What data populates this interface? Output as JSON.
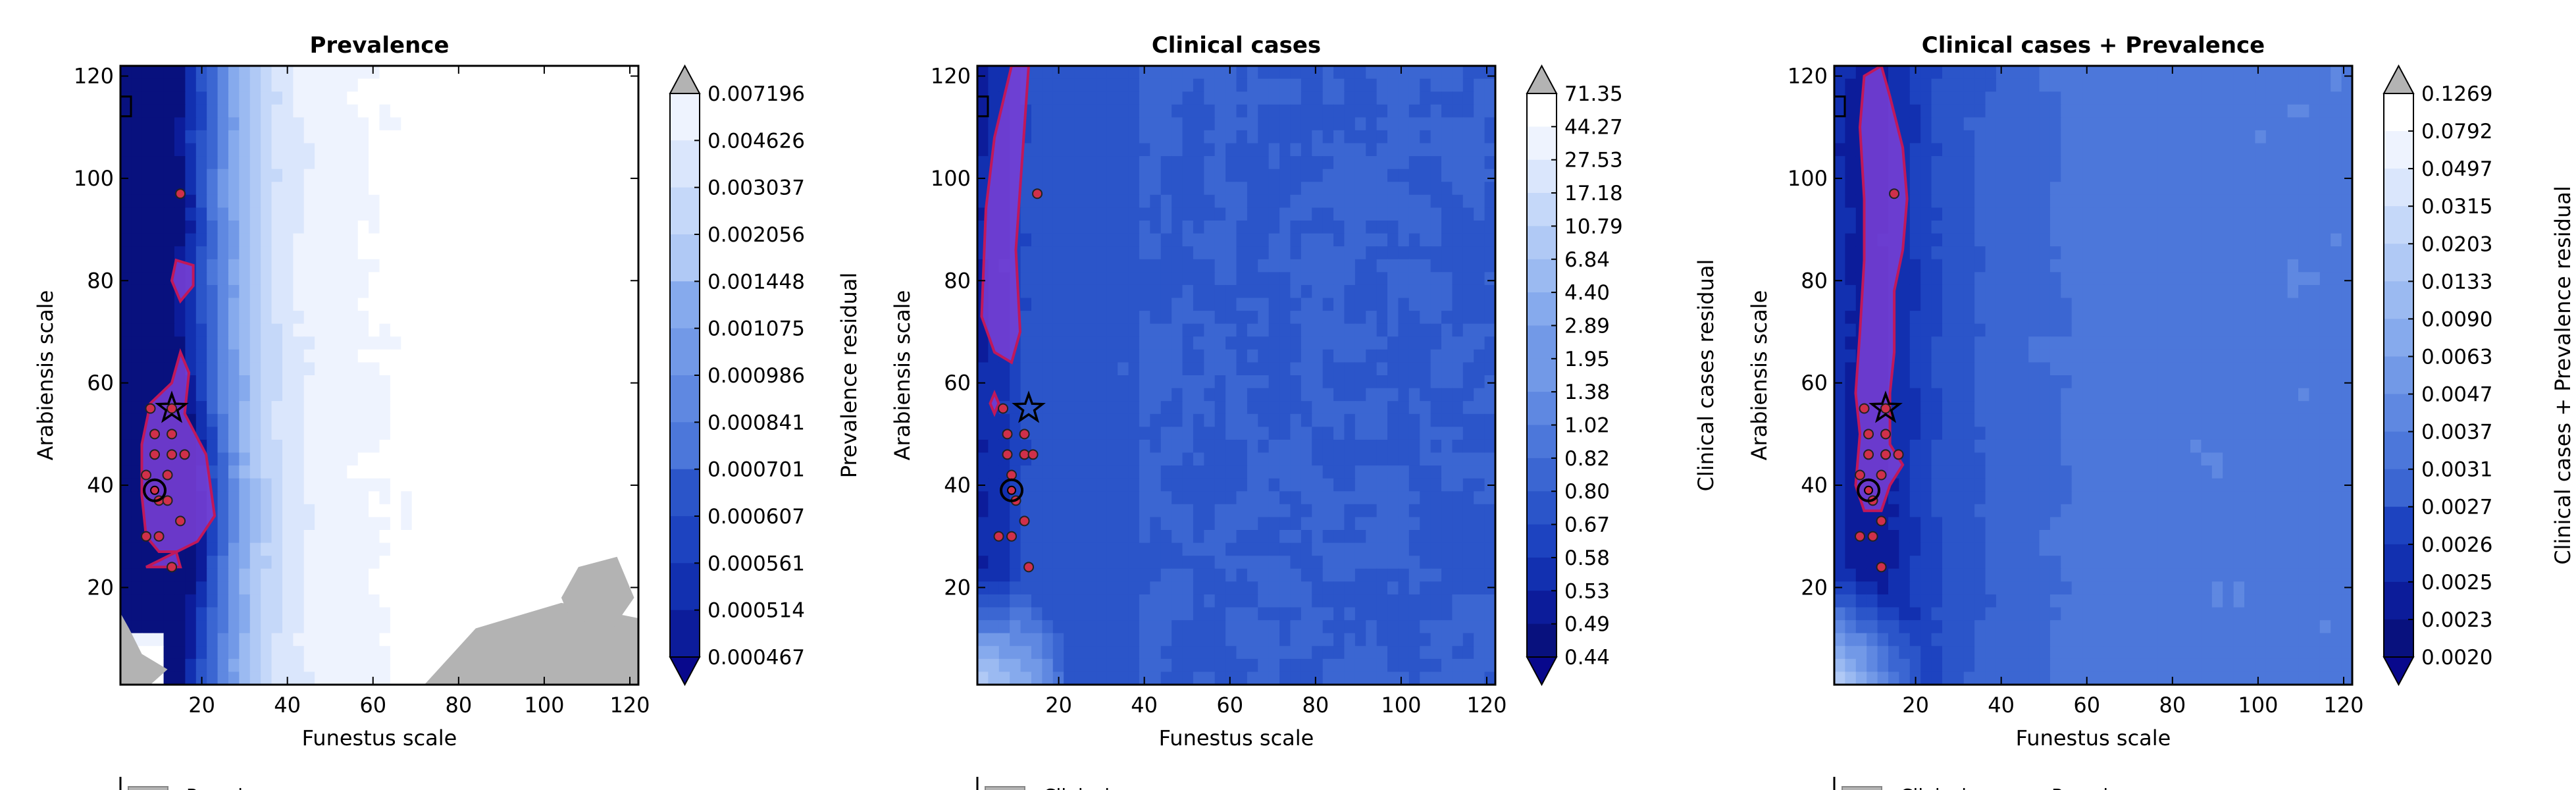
{
  "figure": {
    "colors": {
      "axis": "#000000",
      "over_color": "#b3b3b3",
      "under_color": "#08088c",
      "contour_outline": "#c0185a",
      "region_fill": "#7b3fd6",
      "marker_fill": "#d0304a",
      "marker_edge": "#222222",
      "colormap": [
        "#08117e",
        "#0c1c9a",
        "#1230b0",
        "#1d43c0",
        "#2b55c9",
        "#3b66d2",
        "#4c77da",
        "#5f88e1",
        "#7299e7",
        "#86aaed",
        "#9bbaf1",
        "#b0c9f5",
        "#c5d8f9",
        "#dae6fc",
        "#eef3fe",
        "#ffffff"
      ]
    },
    "legend_label_fragments": [
      "Prevalence",
      "Clinical",
      "Clinical cases + Prevalence"
    ]
  },
  "chart_data": [
    {
      "type": "heatmap",
      "title": "Prevalence",
      "xlabel": "Funestus scale",
      "ylabel": "Arabiensis scale",
      "xlim": [
        1,
        122
      ],
      "ylim": [
        1,
        122
      ],
      "xticks": [
        20,
        40,
        60,
        80,
        100,
        120
      ],
      "yticks": [
        20,
        40,
        60,
        80,
        100,
        120
      ],
      "colorbar_label": "Prevalence residual",
      "colorbar_ticks": [
        "0.007196",
        "0.004626",
        "0.003037",
        "0.002056",
        "0.001448",
        "0.001075",
        "0.000986",
        "0.000841",
        "0.000701",
        "0.000607",
        "0.000561",
        "0.000514",
        "0.000467"
      ],
      "field": {
        "ridge_x": 12,
        "ridge_sigma": 11,
        "falloff": 18,
        "band": "low",
        "noise": 0.5,
        "blob_y": 36,
        "blob_strength": 1.0
      },
      "region_polygon": [
        [
          7,
          24
        ],
        [
          15,
          24
        ],
        [
          14,
          27
        ],
        [
          10,
          27
        ],
        [
          7,
          30
        ],
        [
          6,
          38
        ],
        [
          6,
          48
        ],
        [
          8,
          56
        ],
        [
          13,
          60
        ],
        [
          15,
          66
        ],
        [
          17,
          62
        ],
        [
          16,
          54
        ],
        [
          21,
          46
        ],
        [
          23,
          34
        ],
        [
          19,
          29
        ]
      ],
      "extra_regions": [
        [
          [
            14,
            84
          ],
          [
            18,
            83
          ],
          [
            18,
            79
          ],
          [
            15,
            76
          ],
          [
            13,
            80
          ]
        ]
      ],
      "markers": [
        [
          7,
          42
        ],
        [
          8,
          55
        ],
        [
          9,
          50
        ],
        [
          9,
          46
        ],
        [
          10,
          37
        ],
        [
          10,
          30
        ],
        [
          7,
          30
        ],
        [
          13,
          55
        ],
        [
          13,
          50
        ],
        [
          13,
          46
        ],
        [
          12,
          42
        ],
        [
          16,
          46
        ],
        [
          15,
          33
        ],
        [
          13,
          24
        ],
        [
          15,
          97
        ],
        [
          12,
          37
        ]
      ],
      "star": [
        13,
        55
      ],
      "circle": [
        9,
        39
      ],
      "gray_patches": [
        [
          [
            72,
            1
          ],
          [
            122,
            1
          ],
          [
            122,
            14
          ],
          [
            104,
            17
          ],
          [
            84,
            12
          ]
        ],
        [
          [
            1,
            1
          ],
          [
            8,
            1
          ],
          [
            12,
            4
          ],
          [
            6,
            7
          ],
          [
            3,
            12
          ],
          [
            1,
            15
          ]
        ],
        [
          [
            106,
            14
          ],
          [
            116,
            12
          ],
          [
            121,
            18
          ],
          [
            117,
            26
          ],
          [
            108,
            24
          ],
          [
            104,
            18
          ]
        ]
      ],
      "colorbar_edge_label": "",
      "frame_left_marker": true
    },
    {
      "type": "heatmap",
      "title": "Clinical cases",
      "xlabel": "Funestus scale",
      "ylabel": "Arabiensis scale",
      "xlim": [
        1,
        122
      ],
      "ylim": [
        1,
        122
      ],
      "xticks": [
        20,
        40,
        60,
        80,
        100,
        120
      ],
      "yticks": [
        20,
        40,
        60,
        80,
        100,
        120
      ],
      "colorbar_label": "Clinical cases residual",
      "colorbar_ticks": [
        "71.35",
        "44.27",
        "27.53",
        "17.18",
        "10.79",
        "6.84",
        "4.40",
        "2.89",
        "1.95",
        "1.38",
        "1.02",
        "0.82",
        "0.80",
        "0.67",
        "0.58",
        "0.53",
        "0.49",
        "0.44"
      ],
      "field": {
        "ridge_x": 2,
        "ridge_sigma": 6,
        "falloff": 40,
        "band": "mid",
        "noise": 0.35,
        "blob_y": 0,
        "blob_strength": 0.0
      },
      "region_polygon": [
        [
          2,
          73
        ],
        [
          3,
          94
        ],
        [
          5,
          108
        ],
        [
          9,
          122
        ],
        [
          13,
          122
        ],
        [
          12,
          110
        ],
        [
          11,
          98
        ],
        [
          10,
          86
        ],
        [
          11,
          70
        ],
        [
          9,
          64
        ],
        [
          5,
          66
        ]
      ],
      "extra_regions": [
        [
          [
            4,
            56
          ],
          [
            5,
            54
          ],
          [
            6,
            56
          ],
          [
            5,
            58
          ]
        ]
      ],
      "markers": [
        [
          7,
          55
        ],
        [
          8,
          50
        ],
        [
          8,
          46
        ],
        [
          9,
          42
        ],
        [
          10,
          37
        ],
        [
          9,
          30
        ],
        [
          6,
          30
        ],
        [
          12,
          50
        ],
        [
          12,
          46
        ],
        [
          14,
          46
        ],
        [
          12,
          33
        ],
        [
          13,
          24
        ],
        [
          15,
          97
        ]
      ],
      "star": [
        13,
        55
      ],
      "circle": [
        9,
        39
      ],
      "gray_patches": [],
      "colorbar_edge_label": "",
      "frame_left_marker": true
    },
    {
      "type": "heatmap",
      "title": "Clinical cases + Prevalence",
      "xlabel": "Funestus scale",
      "ylabel": "Arabiensis scale",
      "xlim": [
        1,
        122
      ],
      "ylim": [
        1,
        122
      ],
      "xticks": [
        20,
        40,
        60,
        80,
        100,
        120
      ],
      "yticks": [
        20,
        40,
        60,
        80,
        100,
        120
      ],
      "colorbar_label": "Clinical cases + Prevalence residual",
      "colorbar_ticks": [
        "0.1269",
        "0.0792",
        "0.0497",
        "0.0315",
        "0.0203",
        "0.0133",
        "0.0090",
        "0.0063",
        "0.0047",
        "0.0037",
        "0.0031",
        "0.0027",
        "0.0026",
        "0.0025",
        "0.0023",
        "0.0020"
      ],
      "field": {
        "ridge_x": 10,
        "ridge_sigma": 10,
        "falloff": 28,
        "band": "mid",
        "noise": 0.4,
        "blob_y": 0,
        "blob_strength": 0.0
      },
      "region_polygon": [
        [
          6,
          40
        ],
        [
          8,
          35
        ],
        [
          12,
          35
        ],
        [
          14,
          40
        ],
        [
          17,
          44
        ],
        [
          14,
          48
        ],
        [
          14,
          58
        ],
        [
          15,
          66
        ],
        [
          15,
          78
        ],
        [
          17,
          86
        ],
        [
          18,
          96
        ],
        [
          17,
          106
        ],
        [
          14,
          116
        ],
        [
          12,
          122
        ],
        [
          8,
          120
        ],
        [
          7,
          110
        ],
        [
          8,
          96
        ],
        [
          8,
          84
        ],
        [
          7,
          70
        ],
        [
          6,
          58
        ],
        [
          7,
          50
        ]
      ],
      "extra_regions": [],
      "markers": [
        [
          7,
          42
        ],
        [
          8,
          55
        ],
        [
          9,
          50
        ],
        [
          9,
          46
        ],
        [
          10,
          37
        ],
        [
          10,
          30
        ],
        [
          7,
          30
        ],
        [
          13,
          55
        ],
        [
          13,
          50
        ],
        [
          13,
          46
        ],
        [
          12,
          42
        ],
        [
          16,
          46
        ],
        [
          12,
          33
        ],
        [
          12,
          24
        ],
        [
          15,
          97
        ]
      ],
      "star": [
        13,
        55
      ],
      "circle": [
        9,
        39
      ],
      "gray_patches": [],
      "colorbar_edge_label": "",
      "frame_left_marker": true
    }
  ]
}
